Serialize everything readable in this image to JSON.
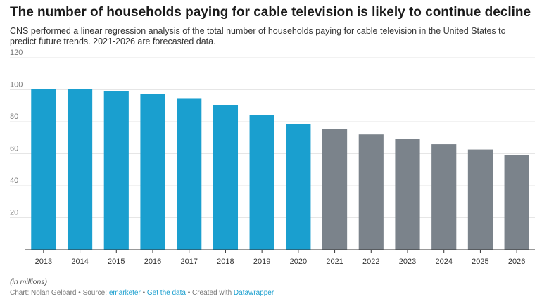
{
  "header": {
    "title": "The number of households paying for cable television is likely to continue decline",
    "subtitle": "CNS performed a linear regression analysis of the total number of households paying for cable television in the United States to predict future trends. 2021-2026 are forecasted data."
  },
  "chart_data": {
    "type": "bar",
    "categories": [
      "2013",
      "2014",
      "2015",
      "2016",
      "2017",
      "2018",
      "2019",
      "2020",
      "2021",
      "2022",
      "2023",
      "2024",
      "2025",
      "2026"
    ],
    "values": [
      100.5,
      100.5,
      99.2,
      97.5,
      94.3,
      90.2,
      84.2,
      78.3,
      75.5,
      72.0,
      69.2,
      65.9,
      62.6,
      59.3
    ],
    "forecast": [
      false,
      false,
      false,
      false,
      false,
      false,
      false,
      false,
      true,
      true,
      true,
      true,
      true,
      true
    ],
    "title": "",
    "xlabel": "",
    "ylabel": "",
    "ylim": [
      0,
      120
    ],
    "yticks": [
      20,
      40,
      60,
      80,
      100,
      120
    ],
    "grid": true,
    "colors": {
      "actual": "#1a9fcf",
      "forecast": "#7b838b",
      "grid": "#e6e6e6",
      "axis": "#333333"
    }
  },
  "notes": {
    "unit": "(in millions)"
  },
  "footer": {
    "chart_by": "Chart: Nolan Gelbard",
    "sep1": " • ",
    "source_label": "Source: ",
    "source_link": "emarketer",
    "sep2": " • ",
    "data_link": "Get the data",
    "sep3": " • ",
    "created_label": "Created with ",
    "created_link": "Datawrapper"
  }
}
